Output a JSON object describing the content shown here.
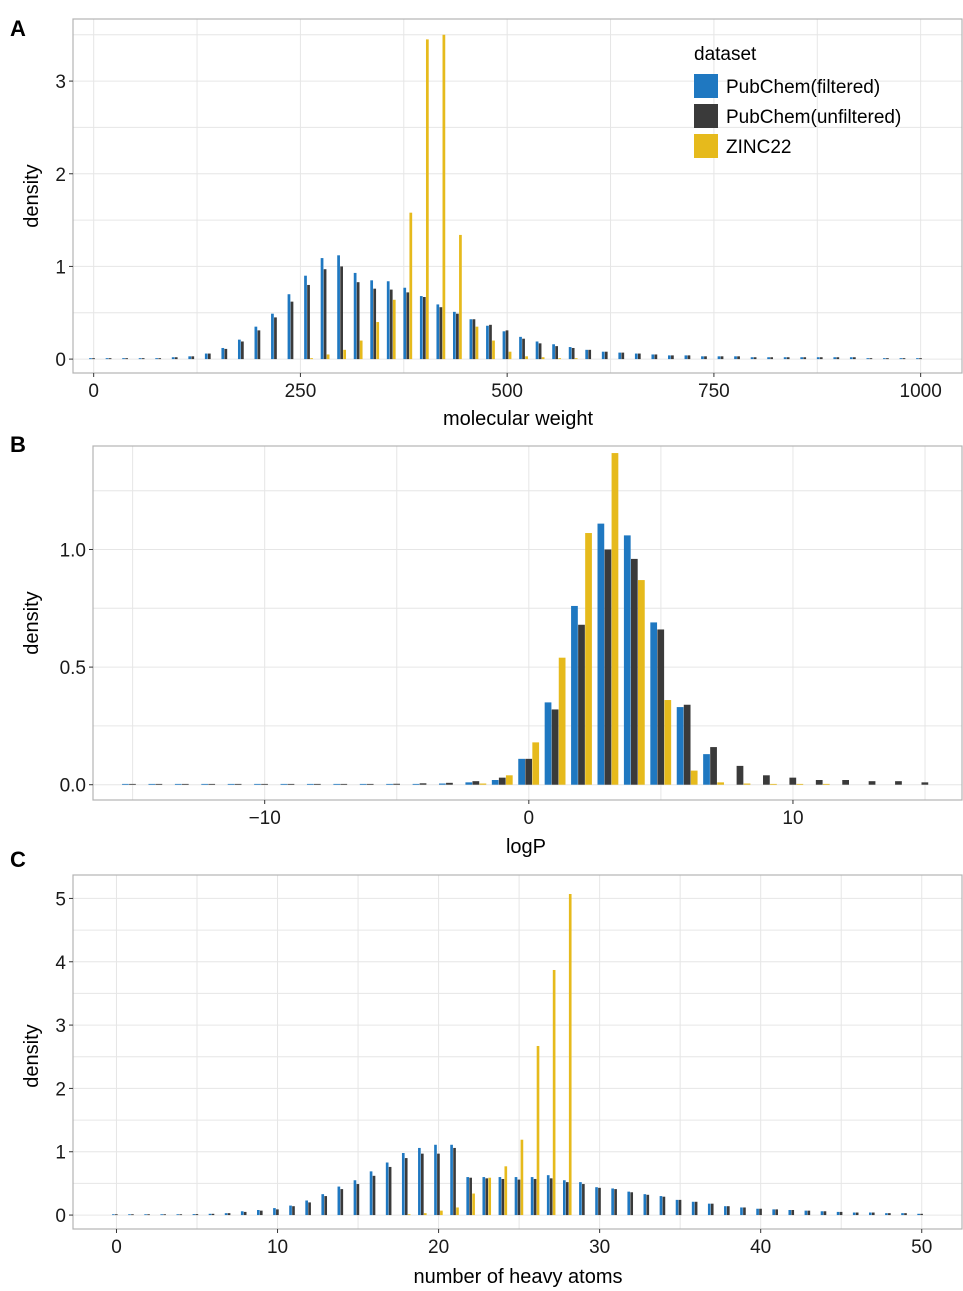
{
  "chart_data": [
    {
      "type": "bar",
      "panel": "A",
      "xlabel": "molecular weight",
      "ylabel": "density",
      "xlim": [
        -25,
        1050
      ],
      "ylim": [
        -0.15,
        3.67
      ],
      "x_ticks": [
        0,
        250,
        500,
        750,
        1000
      ],
      "x_tick_labels": [
        "0",
        "250",
        "500",
        "750",
        "1000"
      ],
      "y_ticks": [
        0,
        1,
        2,
        3
      ],
      "y_tick_labels": [
        "0",
        "1",
        "2",
        "3"
      ],
      "grid": true,
      "legend": {
        "title": "dataset",
        "placement": "top-right",
        "entries": [
          "PubChem(filtered)",
          "PubChem(unfiltered)",
          "ZINC22"
        ]
      },
      "x": [
        0,
        20,
        40,
        60,
        80,
        100,
        120,
        140,
        160,
        180,
        200,
        220,
        240,
        260,
        280,
        300,
        320,
        340,
        360,
        380,
        400,
        420,
        440,
        460,
        480,
        500,
        520,
        540,
        560,
        580,
        600,
        620,
        640,
        660,
        680,
        700,
        720,
        740,
        760,
        780,
        800,
        820,
        840,
        860,
        880,
        900,
        920,
        940,
        960,
        980,
        1000
      ],
      "series": [
        {
          "name": "PubChem(filtered)",
          "values": [
            0.01,
            0.01,
            0.01,
            0.01,
            0.01,
            0.02,
            0.03,
            0.06,
            0.12,
            0.21,
            0.35,
            0.49,
            0.7,
            0.9,
            1.09,
            1.12,
            0.93,
            0.85,
            0.84,
            0.77,
            0.68,
            0.59,
            0.51,
            0.43,
            0.36,
            0.3,
            0.24,
            0.19,
            0.16,
            0.13,
            0.1,
            0.08,
            0.07,
            0.06,
            0.05,
            0.04,
            0.04,
            0.03,
            0.03,
            0.03,
            0.02,
            0.02,
            0.02,
            0.02,
            0.02,
            0.02,
            0.02,
            0.01,
            0.01,
            0.01,
            0.01
          ]
        },
        {
          "name": "PubChem(unfiltered)",
          "values": [
            0.01,
            0.01,
            0.01,
            0.01,
            0.01,
            0.02,
            0.03,
            0.06,
            0.11,
            0.19,
            0.31,
            0.45,
            0.62,
            0.8,
            0.97,
            1.0,
            0.83,
            0.76,
            0.75,
            0.72,
            0.67,
            0.56,
            0.49,
            0.43,
            0.37,
            0.31,
            0.22,
            0.17,
            0.14,
            0.12,
            0.1,
            0.08,
            0.07,
            0.06,
            0.05,
            0.04,
            0.04,
            0.03,
            0.03,
            0.03,
            0.02,
            0.02,
            0.02,
            0.02,
            0.02,
            0.02,
            0.02,
            0.01,
            0.01,
            0.01,
            0.01
          ]
        },
        {
          "name": "ZINC22",
          "values": [
            0.0,
            0.0,
            0.0,
            0.0,
            0.0,
            0.0,
            0.0,
            0.0,
            0.0,
            0.0,
            0.0,
            0.0,
            0.0,
            0.01,
            0.05,
            0.1,
            0.2,
            0.4,
            0.64,
            1.58,
            3.45,
            3.5,
            1.34,
            0.35,
            0.2,
            0.08,
            0.03,
            0.02,
            0.01,
            0.01,
            0.0,
            0.0,
            0.0,
            0.0,
            0.0,
            0.0,
            0.0,
            0.0,
            0.0,
            0.0,
            0.0,
            0.0,
            0.0,
            0.0,
            0.0,
            0.0,
            0.0,
            0.0,
            0.0,
            0.0,
            0.0
          ]
        }
      ]
    },
    {
      "type": "bar",
      "panel": "B",
      "xlabel": "logP",
      "ylabel": "density",
      "xlim": [
        -16.5,
        16.4
      ],
      "ylim": [
        -0.065,
        1.44
      ],
      "x_ticks": [
        -10,
        0,
        10
      ],
      "x_tick_labels": [
        "−10",
        "0",
        "10"
      ],
      "y_ticks": [
        0.0,
        0.5,
        1.0
      ],
      "y_tick_labels": [
        "0.0",
        "0.5",
        "1.0"
      ],
      "grid": true,
      "x": [
        -15,
        -14,
        -13,
        -12,
        -11,
        -10,
        -9,
        -8,
        -7,
        -6,
        -5,
        -4,
        -3,
        -2,
        -1,
        0,
        1,
        2,
        3,
        4,
        5,
        6,
        7,
        8,
        9,
        10,
        11,
        12,
        13,
        14,
        15
      ],
      "series": [
        {
          "name": "PubChem(filtered)",
          "values": [
            0.001,
            0.001,
            0.001,
            0.001,
            0.001,
            0.001,
            0.001,
            0.001,
            0.001,
            0.001,
            0.002,
            0.003,
            0.005,
            0.01,
            0.02,
            0.11,
            0.35,
            0.76,
            1.11,
            1.06,
            0.69,
            0.33,
            0.13,
            0.0,
            0.0,
            0.0,
            0.0,
            0.0,
            0.0,
            0.0,
            0.0
          ]
        },
        {
          "name": "PubChem(unfiltered)",
          "values": [
            0.002,
            0.002,
            0.002,
            0.002,
            0.002,
            0.002,
            0.002,
            0.002,
            0.002,
            0.003,
            0.004,
            0.006,
            0.008,
            0.015,
            0.03,
            0.11,
            0.32,
            0.68,
            1.0,
            0.96,
            0.66,
            0.34,
            0.16,
            0.08,
            0.04,
            0.03,
            0.02,
            0.02,
            0.015,
            0.015,
            0.01
          ]
        },
        {
          "name": "ZINC22",
          "values": [
            0.0,
            0.0,
            0.0,
            0.0,
            0.0,
            0.0,
            0.0,
            0.0,
            0.0,
            0.0,
            0.0,
            0.0,
            0.0,
            0.005,
            0.04,
            0.18,
            0.54,
            1.07,
            1.41,
            0.87,
            0.36,
            0.06,
            0.01,
            0.005,
            0.002,
            0.001,
            0.001,
            0.0,
            0.0,
            0.0,
            0.0
          ]
        }
      ]
    },
    {
      "type": "bar",
      "panel": "C",
      "xlabel": "number of heavy atoms",
      "ylabel": "density",
      "xlim": [
        -2.7,
        52.5
      ],
      "ylim": [
        -0.22,
        5.37
      ],
      "x_ticks": [
        0,
        10,
        20,
        30,
        40,
        50
      ],
      "x_tick_labels": [
        "0",
        "10",
        "20",
        "30",
        "40",
        "50"
      ],
      "y_ticks": [
        0,
        1,
        2,
        3,
        4,
        5
      ],
      "y_tick_labels": [
        "0",
        "1",
        "2",
        "3",
        "4",
        "5"
      ],
      "grid": true,
      "x": [
        0,
        1,
        2,
        3,
        4,
        5,
        6,
        7,
        8,
        9,
        10,
        11,
        12,
        13,
        14,
        15,
        16,
        17,
        18,
        19,
        20,
        21,
        22,
        23,
        24,
        25,
        26,
        27,
        28,
        29,
        30,
        31,
        32,
        33,
        34,
        35,
        36,
        37,
        38,
        39,
        40,
        41,
        42,
        43,
        44,
        45,
        46,
        47,
        48,
        49,
        50
      ],
      "series": [
        {
          "name": "PubChem(filtered)",
          "values": [
            0.005,
            0.005,
            0.005,
            0.005,
            0.01,
            0.015,
            0.02,
            0.03,
            0.06,
            0.08,
            0.11,
            0.15,
            0.23,
            0.33,
            0.45,
            0.55,
            0.69,
            0.83,
            0.98,
            1.06,
            1.11,
            1.11,
            0.6,
            0.6,
            0.6,
            0.6,
            0.6,
            0.63,
            0.55,
            0.52,
            0.44,
            0.42,
            0.37,
            0.33,
            0.3,
            0.24,
            0.21,
            0.18,
            0.14,
            0.12,
            0.1,
            0.09,
            0.08,
            0.07,
            0.06,
            0.05,
            0.04,
            0.04,
            0.03,
            0.03,
            0.02
          ]
        },
        {
          "name": "PubChem(unfiltered)",
          "values": [
            0.005,
            0.005,
            0.005,
            0.005,
            0.01,
            0.015,
            0.02,
            0.03,
            0.05,
            0.07,
            0.09,
            0.14,
            0.2,
            0.3,
            0.41,
            0.49,
            0.62,
            0.76,
            0.9,
            0.97,
            0.97,
            1.06,
            0.59,
            0.58,
            0.57,
            0.56,
            0.57,
            0.58,
            0.52,
            0.49,
            0.43,
            0.41,
            0.36,
            0.32,
            0.29,
            0.24,
            0.21,
            0.18,
            0.14,
            0.12,
            0.1,
            0.09,
            0.08,
            0.07,
            0.06,
            0.05,
            0.04,
            0.04,
            0.03,
            0.03,
            0.02
          ]
        },
        {
          "name": "ZINC22",
          "values": [
            0.0,
            0.0,
            0.0,
            0.0,
            0.0,
            0.0,
            0.0,
            0.0,
            0.0,
            0.0,
            0.0,
            0.0,
            0.0,
            0.0,
            0.0,
            0.0,
            0.0,
            0.0,
            0.01,
            0.03,
            0.07,
            0.12,
            0.34,
            0.59,
            0.77,
            1.19,
            2.67,
            3.87,
            5.07,
            0.0,
            0.0,
            0.0,
            0.0,
            0.0,
            0.0,
            0.0,
            0.0,
            0.0,
            0.0,
            0.0,
            0.0,
            0.0,
            0.0,
            0.0,
            0.0,
            0.0,
            0.0,
            0.0,
            0.0,
            0.0,
            0.0
          ]
        }
      ]
    }
  ],
  "colors": {
    "series": [
      "#1F78C1",
      "#3A3A3A",
      "#E6BA1C"
    ],
    "grid": "#E6E6E6",
    "frame": "#B3B3B3"
  }
}
